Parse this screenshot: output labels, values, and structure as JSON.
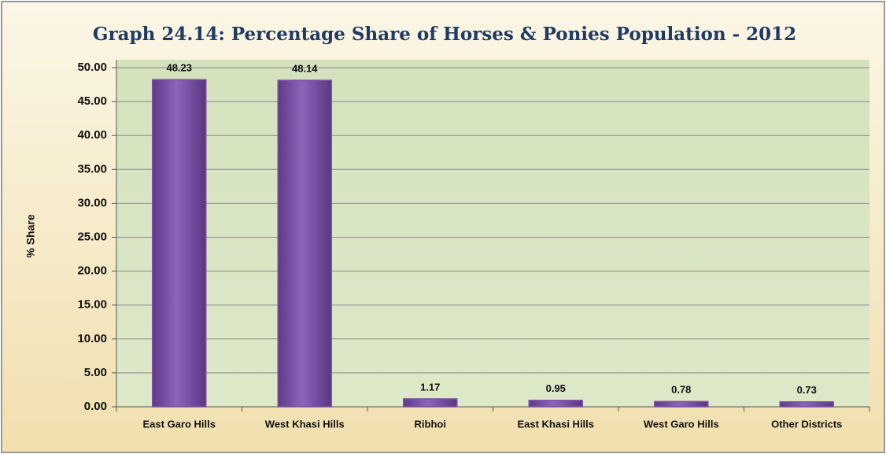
{
  "chart_data": {
    "type": "bar",
    "title": "Graph 24.14: Percentage Share of Horses & Ponies Population - 2012",
    "y_label": "% Share",
    "categories": [
      "East Garo Hills",
      "West Khasi Hills",
      "Ribhoi",
      "East Khasi Hills",
      "West Garo Hills",
      "Other Districts"
    ],
    "values": [
      48.23,
      48.14,
      1.17,
      0.95,
      0.78,
      0.73
    ],
    "color": "#7a52a6",
    "ylim": [
      0,
      50
    ],
    "yticks": [
      {
        "value": 0,
        "label": "0.00"
      },
      {
        "value": 5,
        "label": "5.00"
      },
      {
        "value": 10,
        "label": "10.00"
      },
      {
        "value": 15,
        "label": "15.00"
      },
      {
        "value": 20,
        "label": "20.00"
      },
      {
        "value": 25,
        "label": "25.00"
      },
      {
        "value": 30,
        "label": "30.00"
      },
      {
        "value": 35,
        "label": "35.00"
      },
      {
        "value": 40,
        "label": "40.00"
      },
      {
        "value": 45,
        "label": "45.00"
      },
      {
        "value": 50,
        "label": "50.00"
      }
    ],
    "grid": true
  }
}
